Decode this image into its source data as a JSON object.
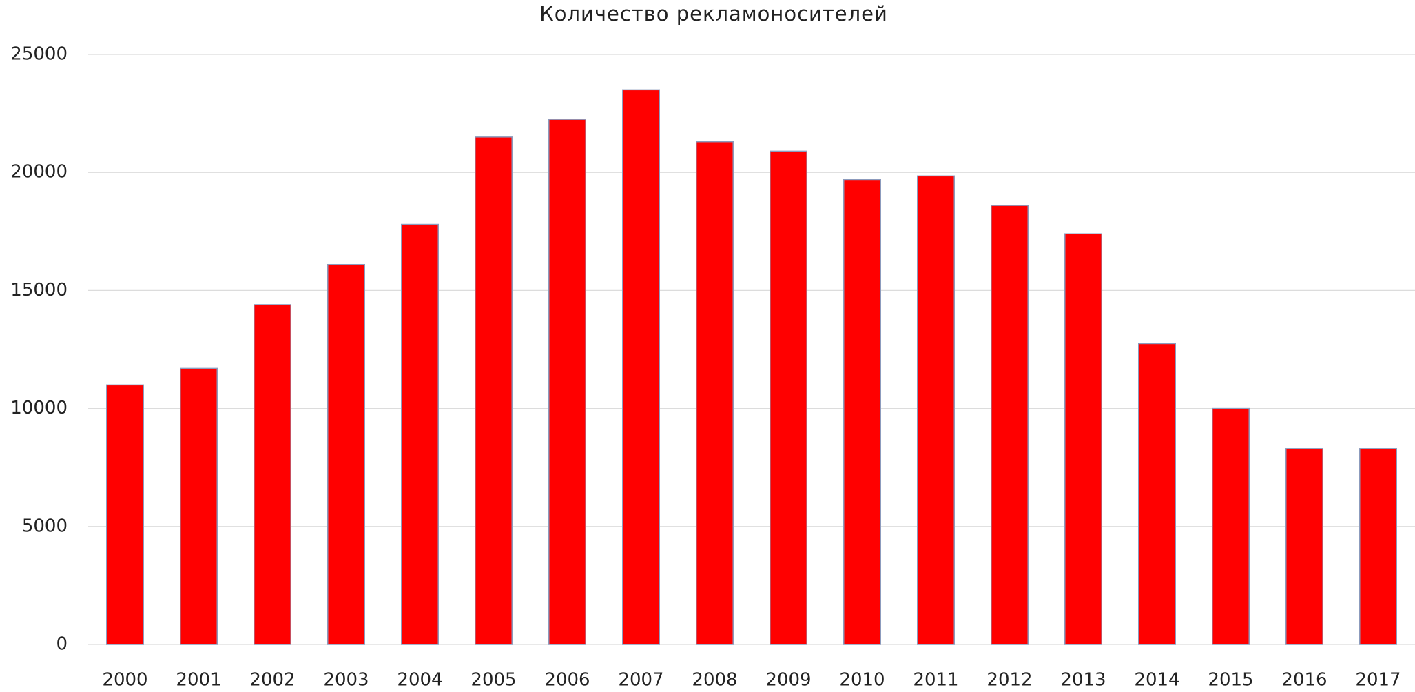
{
  "chart_data": {
    "type": "bar",
    "title": "Количество рекламоносителей",
    "categories": [
      "2000",
      "2001",
      "2002",
      "2003",
      "2004",
      "2005",
      "2006",
      "2007",
      "2008",
      "2009",
      "2010",
      "2011",
      "2012",
      "2013",
      "2014",
      "2015",
      "2016",
      "2017"
    ],
    "values": [
      11000,
      11700,
      14400,
      16100,
      17800,
      21500,
      22250,
      23500,
      21300,
      20900,
      19700,
      19850,
      18600,
      17400,
      12750,
      10000,
      8300,
      8300
    ],
    "color": "#ff0000",
    "ylim": [
      0,
      25000
    ],
    "yticks": [
      0,
      5000,
      10000,
      15000,
      20000,
      25000
    ],
    "grid": true
  }
}
